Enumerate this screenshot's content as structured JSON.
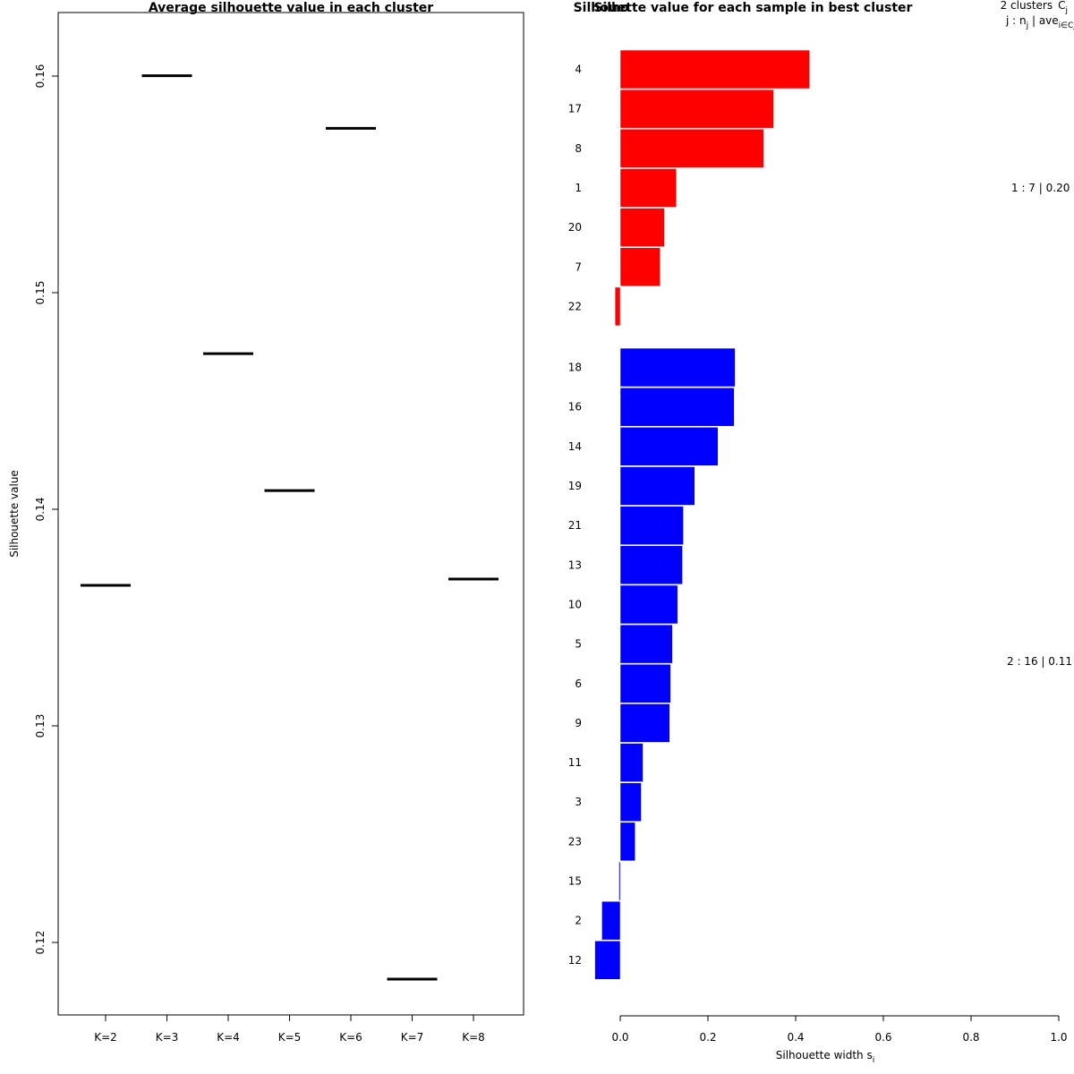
{
  "chart_data": [
    {
      "type": "line",
      "title": "Average silhouette value in each cluster",
      "xlabel": "",
      "ylabel": "Silhouette value",
      "categories": [
        "K=2",
        "K=3",
        "K=4",
        "K=5",
        "K=6",
        "K=7",
        "K=8"
      ],
      "values": [
        0.137,
        0.1612,
        0.148,
        0.1415,
        0.1587,
        0.1183,
        0.1373
      ],
      "ylim": [
        0.1166,
        0.1642
      ],
      "yticks": [
        "0.12",
        "0.13",
        "0.14",
        "0.15",
        "0.16"
      ],
      "grid": false
    },
    {
      "type": "bar",
      "orientation": "horizontal",
      "title": "Silhouette value for each sample in best cluster",
      "title_overlap_text": "Silho",
      "xlabel": "Silhouette width s",
      "xlabel_subscript": "i",
      "xlim": [
        0,
        1
      ],
      "xticks": [
        "0.0",
        "0.2",
        "0.4",
        "0.6",
        "0.8",
        "1.0"
      ],
      "legend_header": {
        "line1": "2 clusters",
        "line1_symbol": "C",
        "line1_sub": "j",
        "line2": "j :  n",
        "line2_sub": "j",
        "line2_mid": " | ave",
        "line2_sub2": "i∈Cj",
        "line2_end": " s",
        "line2_end_sub": "i"
      },
      "clusters": [
        {
          "id": 1,
          "n": 7,
          "avg": 0.2,
          "summary": "1 :  7  |  0.20",
          "color": "#ff0000",
          "samples": [
            "4",
            "17",
            "8",
            "1",
            "20",
            "7",
            "22"
          ],
          "values": [
            0.432,
            0.35,
            0.327,
            0.128,
            0.101,
            0.091,
            -0.012
          ]
        },
        {
          "id": 2,
          "n": 16,
          "avg": 0.11,
          "summary": "2 :  16  |  0.11",
          "color": "#0000ff",
          "samples": [
            "18",
            "16",
            "14",
            "19",
            "21",
            "13",
            "10",
            "5",
            "6",
            "9",
            "11",
            "3",
            "23",
            "15",
            "2",
            "12"
          ],
          "values": [
            0.262,
            0.26,
            0.223,
            0.17,
            0.144,
            0.142,
            0.131,
            0.119,
            0.115,
            0.113,
            0.052,
            0.048,
            0.034,
            -0.003,
            -0.042,
            -0.058
          ]
        }
      ]
    }
  ]
}
